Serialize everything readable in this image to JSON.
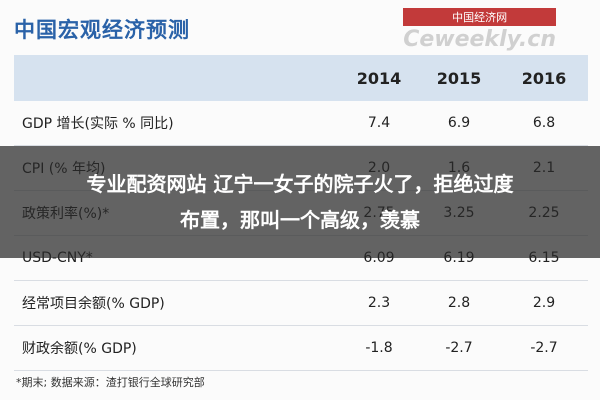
{
  "header": {
    "title": "中国宏观经济预测",
    "logo_cn": "中国经济网",
    "logo_en": "Ceweekly.cn"
  },
  "table": {
    "columns": [
      "2014",
      "2015",
      "2016"
    ],
    "rows": [
      [
        "GDP 增长(实际 % 同比)",
        "7.4",
        "6.9",
        "6.8"
      ],
      [
        "CPI (% 年均)",
        "2.0",
        "1.6",
        "2.1"
      ],
      [
        "政策利率(%)*",
        "2.75",
        "3.25",
        "2.25"
      ],
      [
        "USD-CNY*",
        "6.09",
        "6.19",
        "6.15"
      ],
      [
        "经常项目余额(% GDP)",
        "2.3",
        "2.8",
        "2.9"
      ],
      [
        "财政余额(% GDP)",
        "-1.8",
        "-2.7",
        "-2.7"
      ]
    ]
  },
  "footnote": "*期末;    数据来源：渣打银行全球研究部",
  "overlay": "专业配资网站 辽宁一女子的院子火了，拒绝过度布置，那叫一个高级，羡慕"
}
